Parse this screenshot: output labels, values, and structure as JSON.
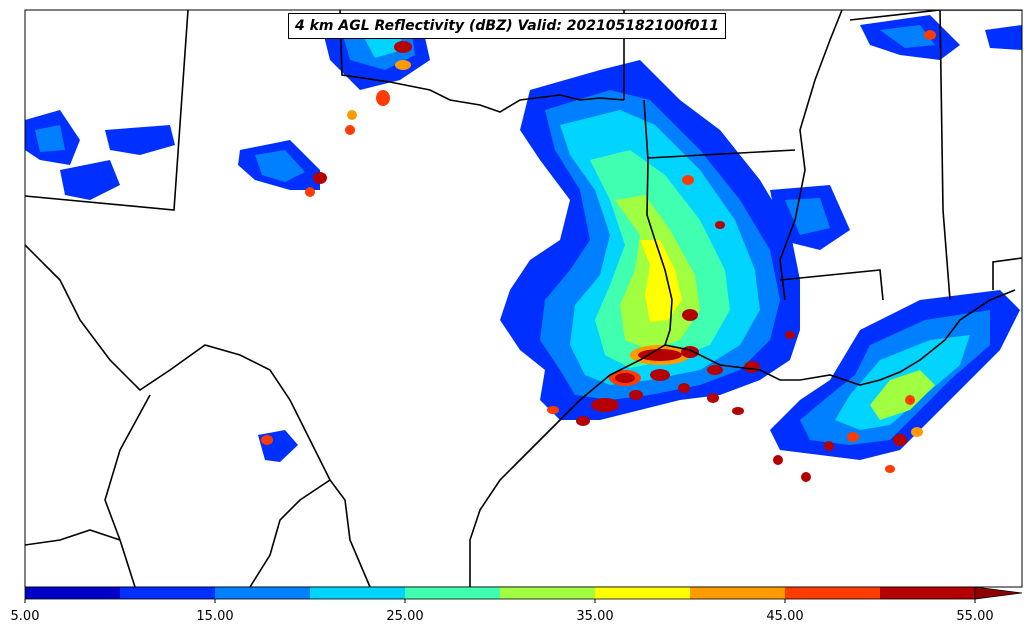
{
  "title": "4 km AGL Reflectivity (dBZ) Valid: 202105182100f011",
  "colorbar": {
    "labels": [
      "5.00",
      "15.00",
      "25.00",
      "35.00",
      "45.00",
      "55.00"
    ],
    "colors": [
      "#0000c8",
      "#0030ff",
      "#0080ff",
      "#00d4ff",
      "#40ffb0",
      "#a0ff40",
      "#ffff00",
      "#ff9a00",
      "#ff3c00",
      "#b40000"
    ],
    "extend_color": "#8c0000"
  },
  "map": {
    "background": "#ffffff",
    "border_color": "#000000"
  }
}
